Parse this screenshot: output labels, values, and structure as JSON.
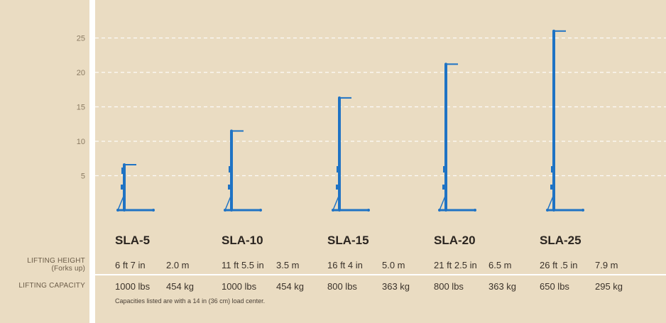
{
  "chart_data": {
    "type": "bar",
    "y_ticks": [
      5,
      10,
      15,
      20,
      25
    ],
    "ylim": [
      0,
      26
    ],
    "grid": true,
    "color": "#1f73c4",
    "categories": [
      "SLA-5",
      "SLA-10",
      "SLA-15",
      "SLA-20",
      "SLA-25"
    ],
    "values": [
      6.6,
      11.5,
      16.3,
      21.2,
      26.0
    ]
  },
  "table": {
    "lifting_height_label_line1": "LIFTING HEIGHT",
    "lifting_height_label_line2": "(Forks up)",
    "lifting_capacity_label": "LIFTING CAPACITY",
    "models": [
      {
        "name": "SLA-5",
        "height_ft": "6 ft 7 in",
        "height_m": "2.0 m",
        "cap_lbs": "1000 lbs",
        "cap_kg": "454 kg"
      },
      {
        "name": "SLA-10",
        "height_ft": "11 ft 5.5 in",
        "height_m": "3.5 m",
        "cap_lbs": "1000 lbs",
        "cap_kg": "454 kg"
      },
      {
        "name": "SLA-15",
        "height_ft": "16 ft 4 in",
        "height_m": "5.0 m",
        "cap_lbs": "800 lbs",
        "cap_kg": "363 kg"
      },
      {
        "name": "SLA-20",
        "height_ft": "21 ft 2.5 in",
        "height_m": "6.5 m",
        "cap_lbs": "800 lbs",
        "cap_kg": "363 kg"
      },
      {
        "name": "SLA-25",
        "height_ft": "26 ft .5 in",
        "height_m": "7.9 m",
        "cap_lbs": "650 lbs",
        "cap_kg": "295 kg"
      }
    ],
    "footnote": "Capacities listed are with a 14 in (36 cm) load center."
  }
}
